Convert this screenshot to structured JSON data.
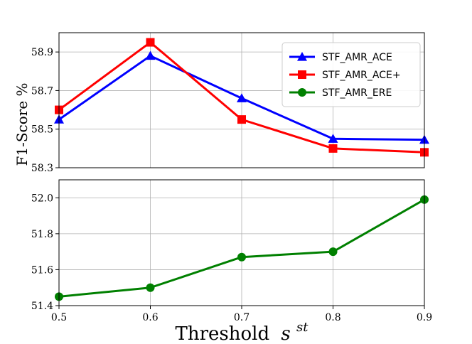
{
  "chart_data": {
    "type": "line",
    "x": [
      0.5,
      0.6,
      0.7,
      0.8,
      0.9
    ],
    "x_tick_labels": [
      "0.5",
      "0.6",
      "0.7",
      "0.8",
      "0.9"
    ],
    "xlim": [
      0.5,
      0.9
    ],
    "xlabel": "Threshold",
    "xlabel_symbol": "s",
    "xlabel_superscript": "st",
    "ylabel": "F1-Score %",
    "grid": true,
    "legend_location": "top-right",
    "panels": [
      {
        "name": "top",
        "ylim": [
          58.3,
          59.0
        ],
        "y_ticks": [
          58.3,
          58.5,
          58.7,
          58.9
        ],
        "y_tick_labels": [
          "58.3",
          "58.5",
          "58.7",
          "58.9"
        ],
        "series": [
          {
            "name": "STF_AMR_ACE",
            "color": "#0000ff",
            "marker": "triangle",
            "values": [
              58.55,
              58.88,
              58.66,
              58.45,
              58.445
            ]
          },
          {
            "name": "STF_AMR_ACE+",
            "color": "#ff0000",
            "marker": "square",
            "values": [
              58.6,
              58.95,
              58.55,
              58.4,
              58.38
            ]
          }
        ]
      },
      {
        "name": "bottom",
        "ylim": [
          51.4,
          52.1
        ],
        "y_ticks": [
          51.4,
          51.6,
          51.8,
          52.0
        ],
        "y_tick_labels": [
          "51.4",
          "51.6",
          "51.8",
          "52.0"
        ],
        "series": [
          {
            "name": "STF_AMR_ERE",
            "color": "#008000",
            "marker": "circle",
            "values": [
              51.45,
              51.5,
              51.67,
              51.7,
              51.99
            ]
          }
        ]
      }
    ],
    "legend": [
      {
        "name": "STF_AMR_ACE",
        "color": "#0000ff",
        "marker": "triangle"
      },
      {
        "name": "STF_AMR_ACE+",
        "color": "#ff0000",
        "marker": "square"
      },
      {
        "name": "STF_AMR_ERE",
        "color": "#008000",
        "marker": "circle"
      }
    ]
  }
}
